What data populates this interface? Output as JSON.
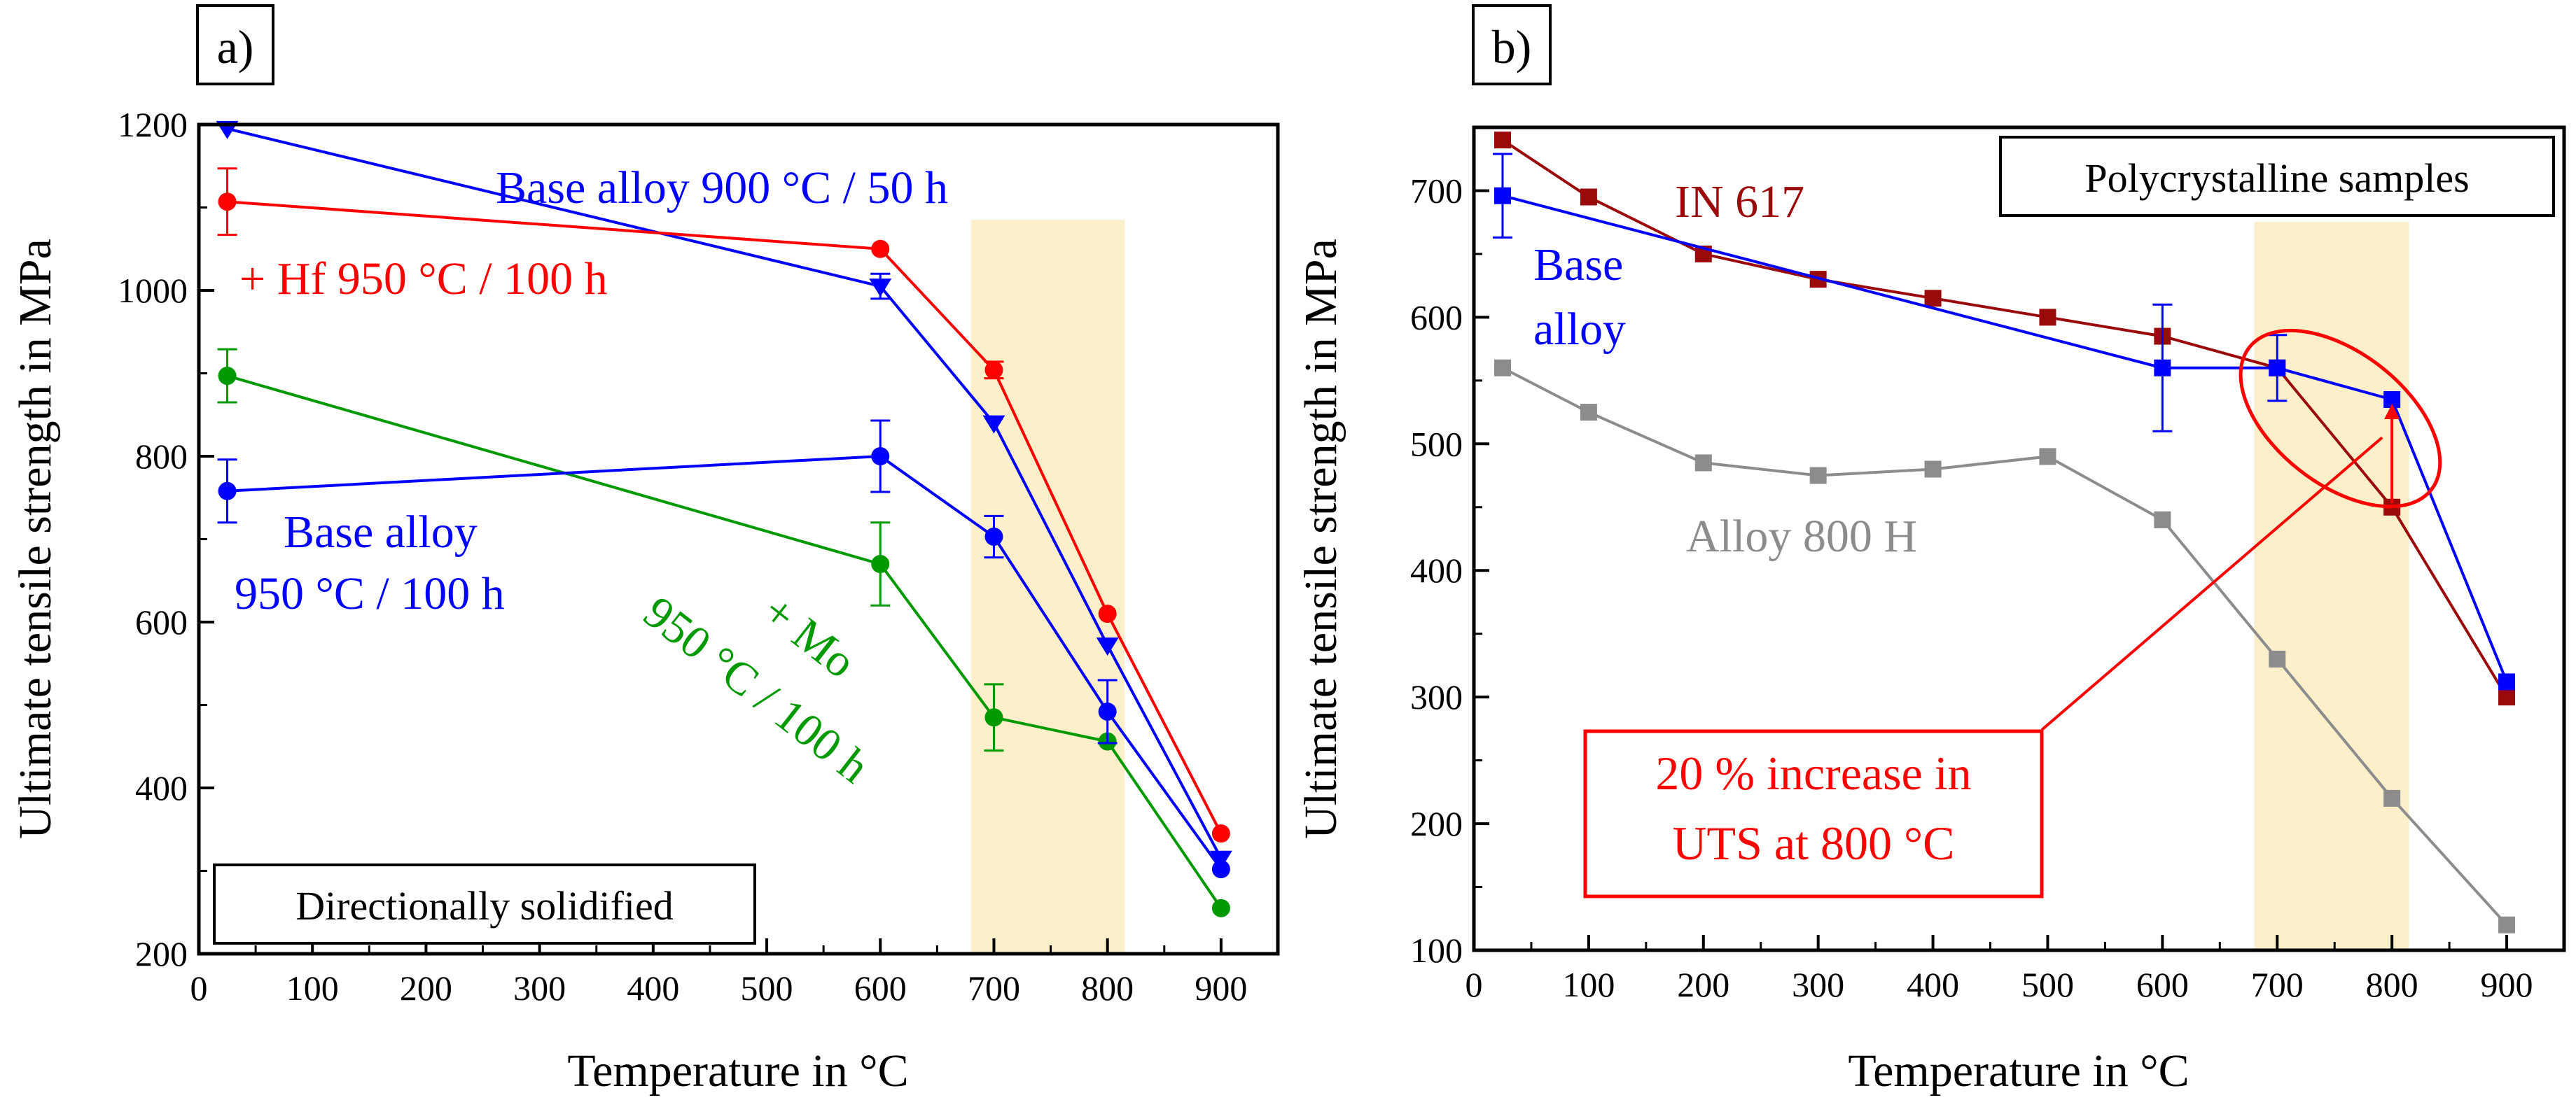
{
  "chart_data": [
    {
      "panel_label": "a)",
      "type": "line",
      "xlabel": "Temperature in °C",
      "ylabel": "Ultimate tensile strength in MPa",
      "xlim": [
        0,
        950
      ],
      "ylim": [
        200,
        1200
      ],
      "xticks": [
        0,
        100,
        200,
        300,
        400,
        500,
        600,
        700,
        800,
        900
      ],
      "yticks": [
        200,
        400,
        600,
        800,
        1000,
        1200
      ],
      "highlight_band": [
        680,
        815
      ],
      "box_label": "Directionally solidified",
      "series": [
        {
          "name": "Base alloy 900 °C / 50 h",
          "label_lines": [
            "Base alloy 900 °C / 50 h"
          ],
          "color": "#0000ff",
          "marker": "triangle-down",
          "x": [
            25,
            600,
            700,
            800,
            900
          ],
          "y": [
            1195,
            1005,
            840,
            572,
            315
          ],
          "err": [
            0,
            15,
            0,
            0,
            0
          ]
        },
        {
          "name": "+ Hf 950 °C / 100 h",
          "label_lines": [
            "+ Hf 950 °C / 100 h"
          ],
          "color": "#ff0000",
          "marker": "circle",
          "x": [
            25,
            600,
            700,
            800,
            900
          ],
          "y": [
            1107,
            1050,
            904,
            610,
            345
          ],
          "err": [
            40,
            0,
            10,
            0,
            0
          ]
        },
        {
          "name": "+ Mo 950 °C / 100 h",
          "label_lines": [
            "+ Mo",
            "950 °C / 100 h"
          ],
          "color": "#009900",
          "marker": "circle",
          "x": [
            25,
            600,
            700,
            800,
            900
          ],
          "y": [
            897,
            670,
            485,
            456,
            255
          ],
          "err": [
            32,
            50,
            40,
            0,
            0
          ]
        },
        {
          "name": "Base alloy 950 °C / 100 h",
          "label_lines": [
            "Base alloy",
            "950 °C / 100 h"
          ],
          "color": "#0000ff",
          "marker": "circle",
          "x": [
            25,
            600,
            700,
            800,
            900
          ],
          "y": [
            758,
            800,
            703,
            492,
            302
          ],
          "err": [
            38,
            43,
            25,
            38,
            0
          ]
        }
      ]
    },
    {
      "panel_label": "b)",
      "type": "line",
      "xlabel": "Temperature in °C",
      "ylabel": "Ultimate tensile strength in MPa",
      "xlim": [
        0,
        950
      ],
      "ylim": [
        100,
        750
      ],
      "xticks": [
        0,
        100,
        200,
        300,
        400,
        500,
        600,
        700,
        800,
        900
      ],
      "yticks": [
        100,
        200,
        300,
        400,
        500,
        600,
        700
      ],
      "highlight_band": [
        680,
        815
      ],
      "box_label": "Polycrystalline samples",
      "series": [
        {
          "name": "IN 617",
          "label_lines": [
            "IN 617"
          ],
          "color": "#9b0a0a",
          "marker": "square",
          "x": [
            25,
            100,
            200,
            300,
            400,
            500,
            600,
            700,
            800,
            900
          ],
          "y": [
            740,
            695,
            650,
            630,
            615,
            600,
            585,
            560,
            450,
            300
          ],
          "err": [
            0,
            0,
            0,
            0,
            0,
            0,
            0,
            0,
            0,
            0
          ]
        },
        {
          "name": "Base alloy",
          "label_lines": [
            "Base",
            "alloy"
          ],
          "color": "#0000ff",
          "marker": "square",
          "x": [
            25,
            600,
            700,
            800,
            900
          ],
          "y": [
            696,
            560,
            560,
            535,
            312
          ],
          "err": [
            33,
            50,
            26,
            0,
            0
          ]
        },
        {
          "name": "Alloy 800 H",
          "label_lines": [
            "Alloy 800 H"
          ],
          "color": "#8c8c8c",
          "marker": "square",
          "x": [
            25,
            100,
            200,
            300,
            400,
            500,
            600,
            700,
            800,
            900
          ],
          "y": [
            560,
            525,
            485,
            475,
            480,
            490,
            440,
            330,
            220,
            120
          ],
          "err": [
            0,
            0,
            0,
            0,
            0,
            0,
            0,
            0,
            0,
            0
          ]
        }
      ],
      "callout": {
        "lines": [
          "20 % increase in",
          "UTS at 800 °C"
        ],
        "color": "#ff0000",
        "arrow_from": [
          800,
          450
        ],
        "arrow_to": [
          800,
          535
        ]
      }
    }
  ]
}
